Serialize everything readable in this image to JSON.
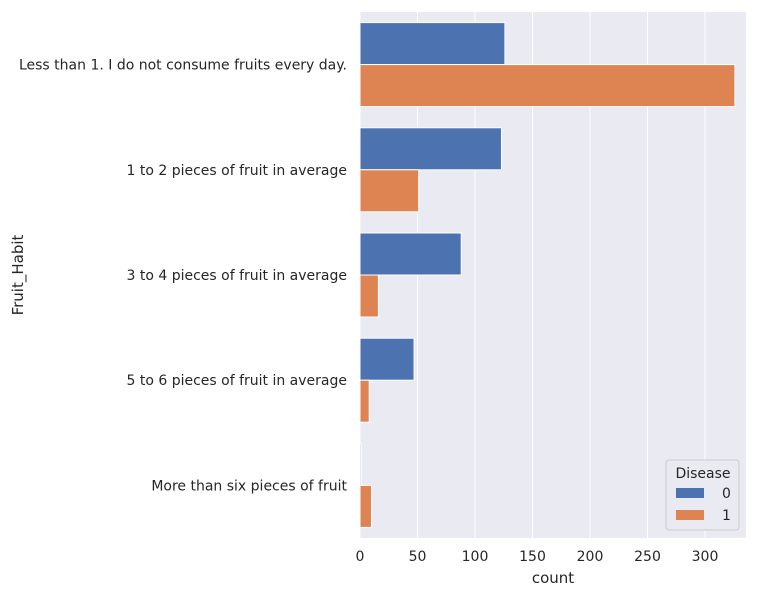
{
  "chart_data": {
    "type": "bar",
    "orientation": "horizontal",
    "categories": [
      "Less than 1. I do not consume fruits every day.",
      "1 to 2 pieces of fruit in average",
      "3 to 4 pieces of fruit in average",
      "5 to 6 pieces of fruit in average",
      "More than six pieces of fruit"
    ],
    "series": [
      {
        "name": "0",
        "color": "#4c72b0",
        "values": [
          126,
          123,
          88,
          47,
          1
        ]
      },
      {
        "name": "1",
        "color": "#dd8452",
        "values": [
          326,
          51,
          16,
          8,
          10
        ]
      }
    ],
    "xlabel": "count",
    "ylabel": "Fruit_Habit",
    "xticks": [
      0,
      50,
      100,
      150,
      200,
      250,
      300
    ],
    "xlim": [
      0,
      340
    ],
    "grid": true,
    "legend": {
      "title": "Disease",
      "placement": "lower-right"
    }
  }
}
